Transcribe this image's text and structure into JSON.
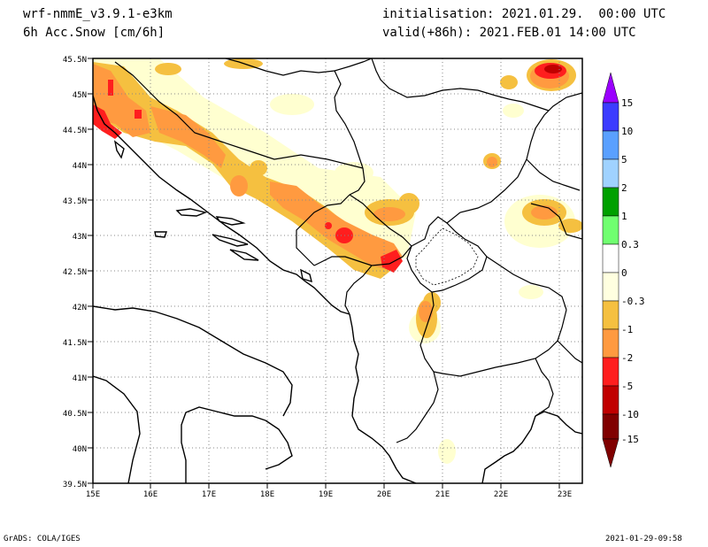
{
  "header": {
    "model": "wrf-nmmE_v3.9.1-e3km",
    "field": "6h Acc.Snow [cm/6h]",
    "init": "initialisation: 2021.01.29.  00:00 UTC",
    "valid": "valid(+86h): 2021.FEB.01 14:00 UTC"
  },
  "map": {
    "lon_labels": [
      "15E",
      "16E",
      "17E",
      "18E",
      "19E",
      "20E",
      "21E",
      "22E",
      "23E"
    ],
    "lat_labels": [
      "45.5N",
      "45N",
      "44.5N",
      "44N",
      "43.5N",
      "43N",
      "42.5N",
      "42N",
      "41.5N",
      "41N",
      "40.5N",
      "40N",
      "39.5N"
    ]
  },
  "legend": {
    "labels": [
      "15",
      "10",
      "5",
      "2",
      "1",
      "0.3",
      "0",
      "-0.3",
      "-1",
      "-2",
      "-5",
      "-10",
      "-15"
    ],
    "colors": [
      "#9a00ff",
      "#3c3cff",
      "#5aa0ff",
      "#a0d2ff",
      "#00a000",
      "#70ff70",
      "#ffffff",
      "#ffffe0",
      "#f5c040",
      "#ff9a40",
      "#ff1e1e",
      "#c00000",
      "#800000"
    ]
  },
  "footer": {
    "left": "GrADS: COLA/IGES",
    "right": "2021-01-29-09:58"
  }
}
